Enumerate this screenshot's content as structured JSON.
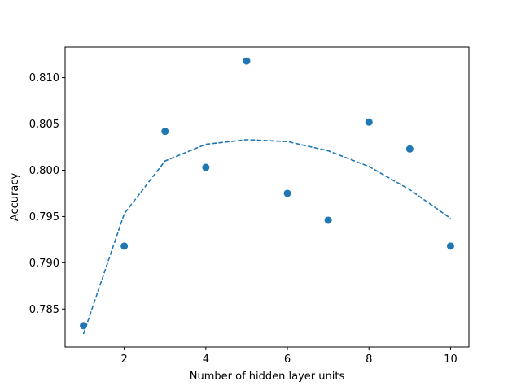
{
  "chart_data": {
    "type": "scatter",
    "title": "",
    "xlabel": "Number of hidden layer units",
    "ylabel": "Accuracy",
    "xlim": [
      0.55,
      10.45
    ],
    "ylim": [
      0.7809,
      0.8133
    ],
    "xticks": [
      2,
      4,
      6,
      8,
      10
    ],
    "yticks": [
      0.785,
      0.79,
      0.795,
      0.8,
      0.805,
      0.81
    ],
    "ytick_labels": [
      "0.785",
      "0.790",
      "0.795",
      "0.800",
      "0.805",
      "0.810"
    ],
    "grid": false,
    "color": "#1f77b4",
    "series": [
      {
        "kind": "scatter",
        "x": [
          1,
          2,
          3,
          4,
          5,
          6,
          7,
          8,
          9,
          10
        ],
        "y": [
          0.7832,
          0.7918,
          0.8042,
          0.8003,
          0.8118,
          0.7975,
          0.7946,
          0.8052,
          0.8023,
          0.7918
        ]
      },
      {
        "kind": "line",
        "style": "dashed",
        "x": [
          1,
          2,
          3,
          4,
          5,
          6,
          7,
          8,
          9,
          10
        ],
        "y": [
          0.7823,
          0.7953,
          0.801,
          0.8028,
          0.8033,
          0.8031,
          0.8021,
          0.8004,
          0.7979,
          0.7948
        ]
      }
    ]
  }
}
